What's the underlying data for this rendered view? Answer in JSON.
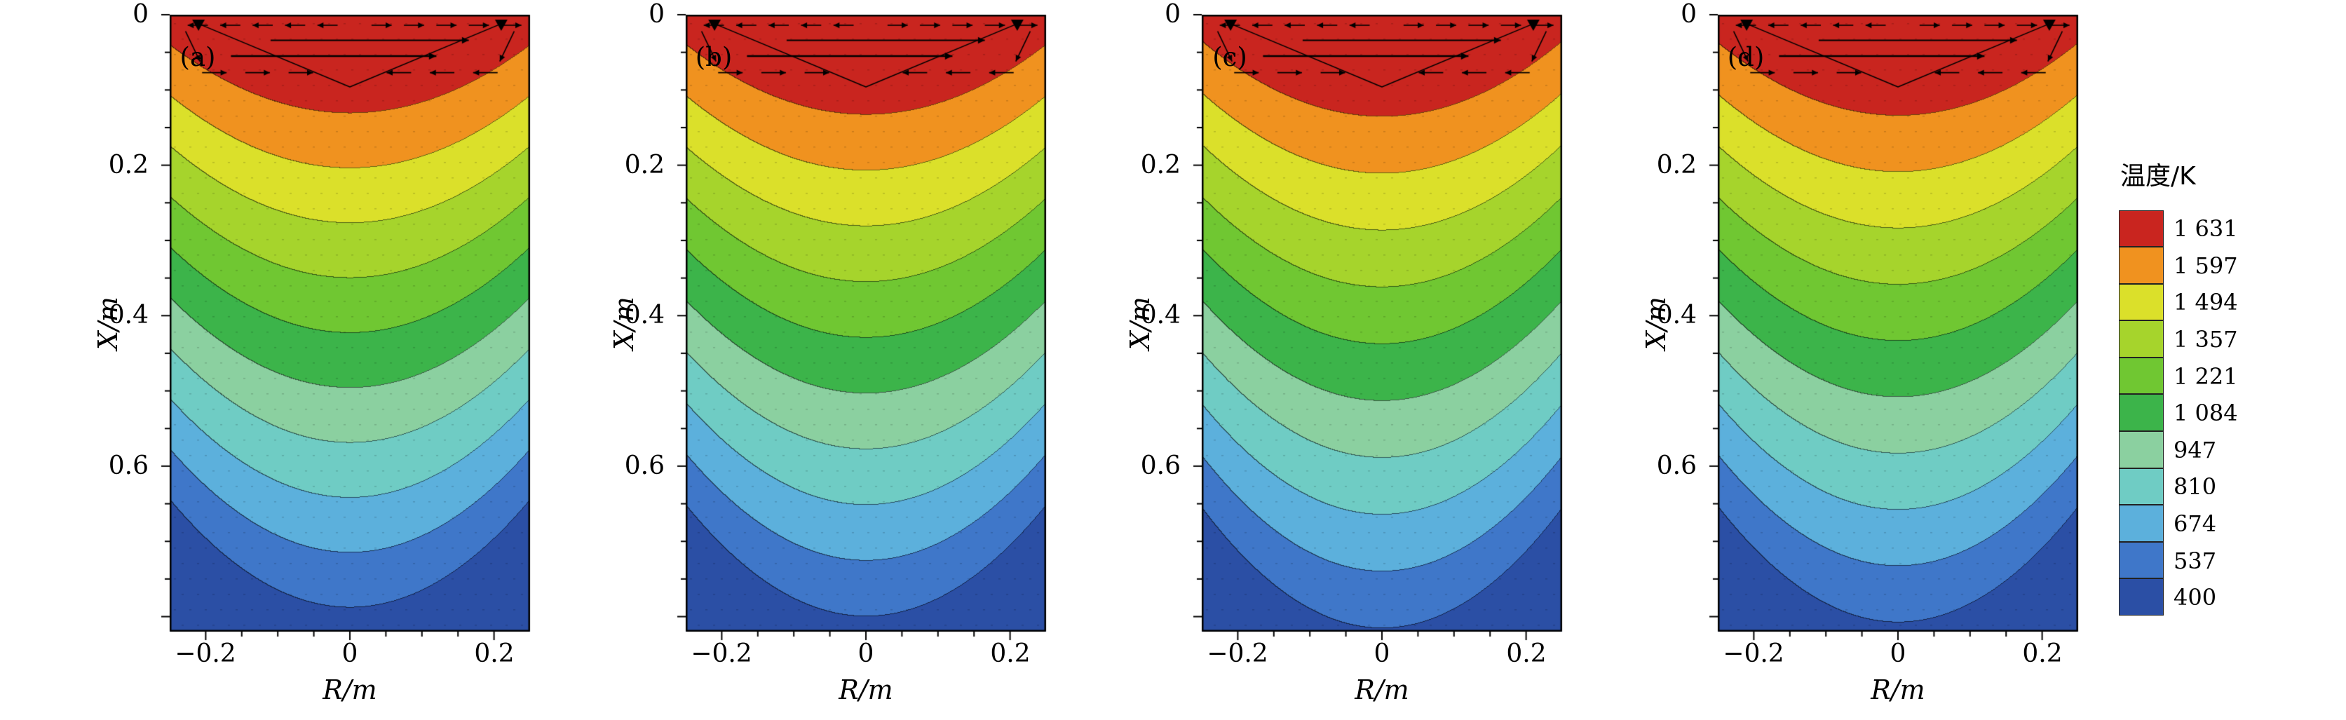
{
  "figure": {
    "legend": {
      "title": "温度/K",
      "levels": [
        {
          "value": "1 631"
        },
        {
          "value": "1 597"
        },
        {
          "value": "1 494"
        },
        {
          "value": "1 357"
        },
        {
          "value": "1 221"
        },
        {
          "value": "1 084"
        },
        {
          "value": "947"
        },
        {
          "value": "810"
        },
        {
          "value": "674"
        },
        {
          "value": "537"
        },
        {
          "value": "400"
        }
      ]
    },
    "panels": [
      {
        "label": "(a)",
        "y_axis": {
          "title": "X/m",
          "ticks": [
            "0",
            "0.2",
            "0.4",
            "0.6"
          ]
        },
        "x_axis": {
          "title": "R/m",
          "ticks": [
            "−0.2",
            "0",
            "0.2"
          ]
        }
      },
      {
        "label": "(b)",
        "y_axis": {
          "title": "X/m",
          "ticks": [
            "0",
            "0.2",
            "0.4",
            "0.6"
          ]
        },
        "x_axis": {
          "title": "R/m",
          "ticks": [
            "−0.2",
            "0",
            "0.2"
          ]
        }
      },
      {
        "label": "(c)",
        "y_axis": {
          "title": "X/m",
          "ticks": [
            "0",
            "0.2",
            "0.4",
            "0.6"
          ]
        },
        "x_axis": {
          "title": "R/m",
          "ticks": [
            "−0.2",
            "0",
            "0.2"
          ]
        }
      },
      {
        "label": "(d)",
        "y_axis": {
          "title": "X/m",
          "ticks": [
            "0",
            "0.2",
            "0.4",
            "0.6"
          ]
        },
        "x_axis": {
          "title": "R/m",
          "ticks": [
            "−0.2",
            "0",
            "0.2"
          ]
        }
      }
    ]
  },
  "chart_data": {
    "type": "heatmap",
    "subtype": "filled-contour-temperature-field",
    "panels": [
      "(a)",
      "(b)",
      "(c)",
      "(d)"
    ],
    "xlabel": "R/m",
    "ylabel": "X/m",
    "x_ticks": [
      -0.2,
      0,
      0.2
    ],
    "y_ticks": [
      0,
      0.2,
      0.4,
      0.6
    ],
    "xlim": [
      -0.25,
      0.25
    ],
    "x_max_m": 0.82,
    "colorbar_title": "温度/K",
    "temperature_levels_K": [
      1631,
      1597,
      1494,
      1357,
      1221,
      1084,
      947,
      810,
      674,
      537,
      400
    ],
    "colors": [
      "#c9251f",
      "#f0921f",
      "#dbe02a",
      "#a6d42c",
      "#70c732",
      "#3cb44a",
      "#8bd0a0",
      "#6fccc4",
      "#5cb0dc",
      "#3f77c9",
      "#2b4fa5"
    ],
    "band_boundary_depth_at_center_m": [
      0.13,
      0.203,
      0.276,
      0.349,
      0.422,
      0.495,
      0.568,
      0.641,
      0.714,
      0.787
    ],
    "isotherm_shape": "bowl-shaped isotherms sagging at the centerline; compressed toward the top at the side walls; hottest (1631 K) red zone at the top surface, coldest (400 K) dark blue at the bottom and lower corners",
    "panel_variation": [
      {
        "sag": 0.08,
        "depth": 1.0
      },
      {
        "sag": 0.082,
        "depth": 1.015
      },
      {
        "sag": 0.088,
        "depth": 1.035
      },
      {
        "sag": 0.085,
        "depth": 1.025
      }
    ],
    "annotations": "black velocity vectors (recirculating molten-pool flow) near the top surface of each panel with a shallow V-shaped pool-boundary line"
  }
}
